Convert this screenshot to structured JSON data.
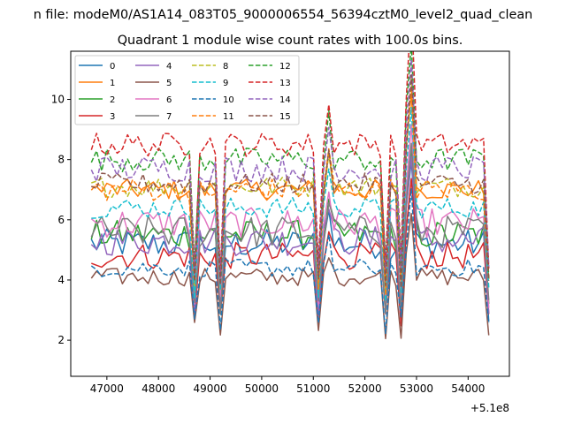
{
  "chart_data": {
    "type": "line",
    "suptitle": "n file: modeM0/AS1A14_083T05_9000006554_56394cztM0_level2_quad_clean",
    "title": "Quadrant 1 module wise count rates with 100.0s bins.",
    "xlabel": "",
    "ylabel": "",
    "x_offset_label": "+5.1e8",
    "x_offset": 510000000,
    "xlim": [
      46300,
      54800
    ],
    "ylim": [
      0.8,
      11.6
    ],
    "x_ticks": [
      47000,
      48000,
      49000,
      50000,
      51000,
      52000,
      53000,
      54000
    ],
    "y_ticks": [
      2,
      4,
      6,
      8,
      10
    ],
    "x_tick_labels": [
      "47000",
      "48000",
      "49000",
      "50000",
      "51000",
      "52000",
      "53000",
      "54000"
    ],
    "y_tick_labels": [
      "2",
      "4",
      "6",
      "8",
      "10"
    ],
    "legend_position": "upper-left",
    "legend_columns": 4,
    "x_start": 46700,
    "x_step": 100,
    "num_points": 78,
    "dip_indices": [
      20,
      25,
      44,
      57,
      60,
      77
    ],
    "series": [
      {
        "name": "0",
        "color": "#1f77b4",
        "dash": "solid",
        "level": 5.2,
        "amplitude": 0.5
      },
      {
        "name": "1",
        "color": "#ff7f0e",
        "dash": "solid",
        "level": 7.0,
        "amplitude": 0.35
      },
      {
        "name": "2",
        "color": "#2ca02c",
        "dash": "solid",
        "level": 5.5,
        "amplitude": 0.5
      },
      {
        "name": "3",
        "color": "#d62728",
        "dash": "solid",
        "level": 4.8,
        "amplitude": 0.45
      },
      {
        "name": "4",
        "color": "#9467bd",
        "dash": "solid",
        "level": 5.3,
        "amplitude": 0.5
      },
      {
        "name": "5",
        "color": "#8c564b",
        "dash": "solid",
        "level": 4.1,
        "amplitude": 0.3
      },
      {
        "name": "6",
        "color": "#e377c2",
        "dash": "solid",
        "level": 5.9,
        "amplitude": 0.5
      },
      {
        "name": "7",
        "color": "#7f7f7f",
        "dash": "solid",
        "level": 5.6,
        "amplitude": 0.55
      },
      {
        "name": "8",
        "color": "#bcbd22",
        "dash": "dashed",
        "level": 7.1,
        "amplitude": 0.35
      },
      {
        "name": "9",
        "color": "#17becf",
        "dash": "dashed",
        "level": 6.4,
        "amplitude": 0.35
      },
      {
        "name": "10",
        "color": "#1f77b4",
        "dash": "dashed",
        "level": 4.4,
        "amplitude": 0.3
      },
      {
        "name": "11",
        "color": "#ff7f0e",
        "dash": "dashed",
        "level": 7.0,
        "amplitude": 0.4
      },
      {
        "name": "12",
        "color": "#2ca02c",
        "dash": "dashed",
        "level": 8.0,
        "amplitude": 0.4
      },
      {
        "name": "13",
        "color": "#d62728",
        "dash": "dashed",
        "level": 8.5,
        "amplitude": 0.4
      },
      {
        "name": "14",
        "color": "#9467bd",
        "dash": "dashed",
        "level": 7.7,
        "amplitude": 0.45
      },
      {
        "name": "15",
        "color": "#8c564b",
        "dash": "dashed",
        "level": 7.2,
        "amplitude": 0.35
      }
    ]
  }
}
